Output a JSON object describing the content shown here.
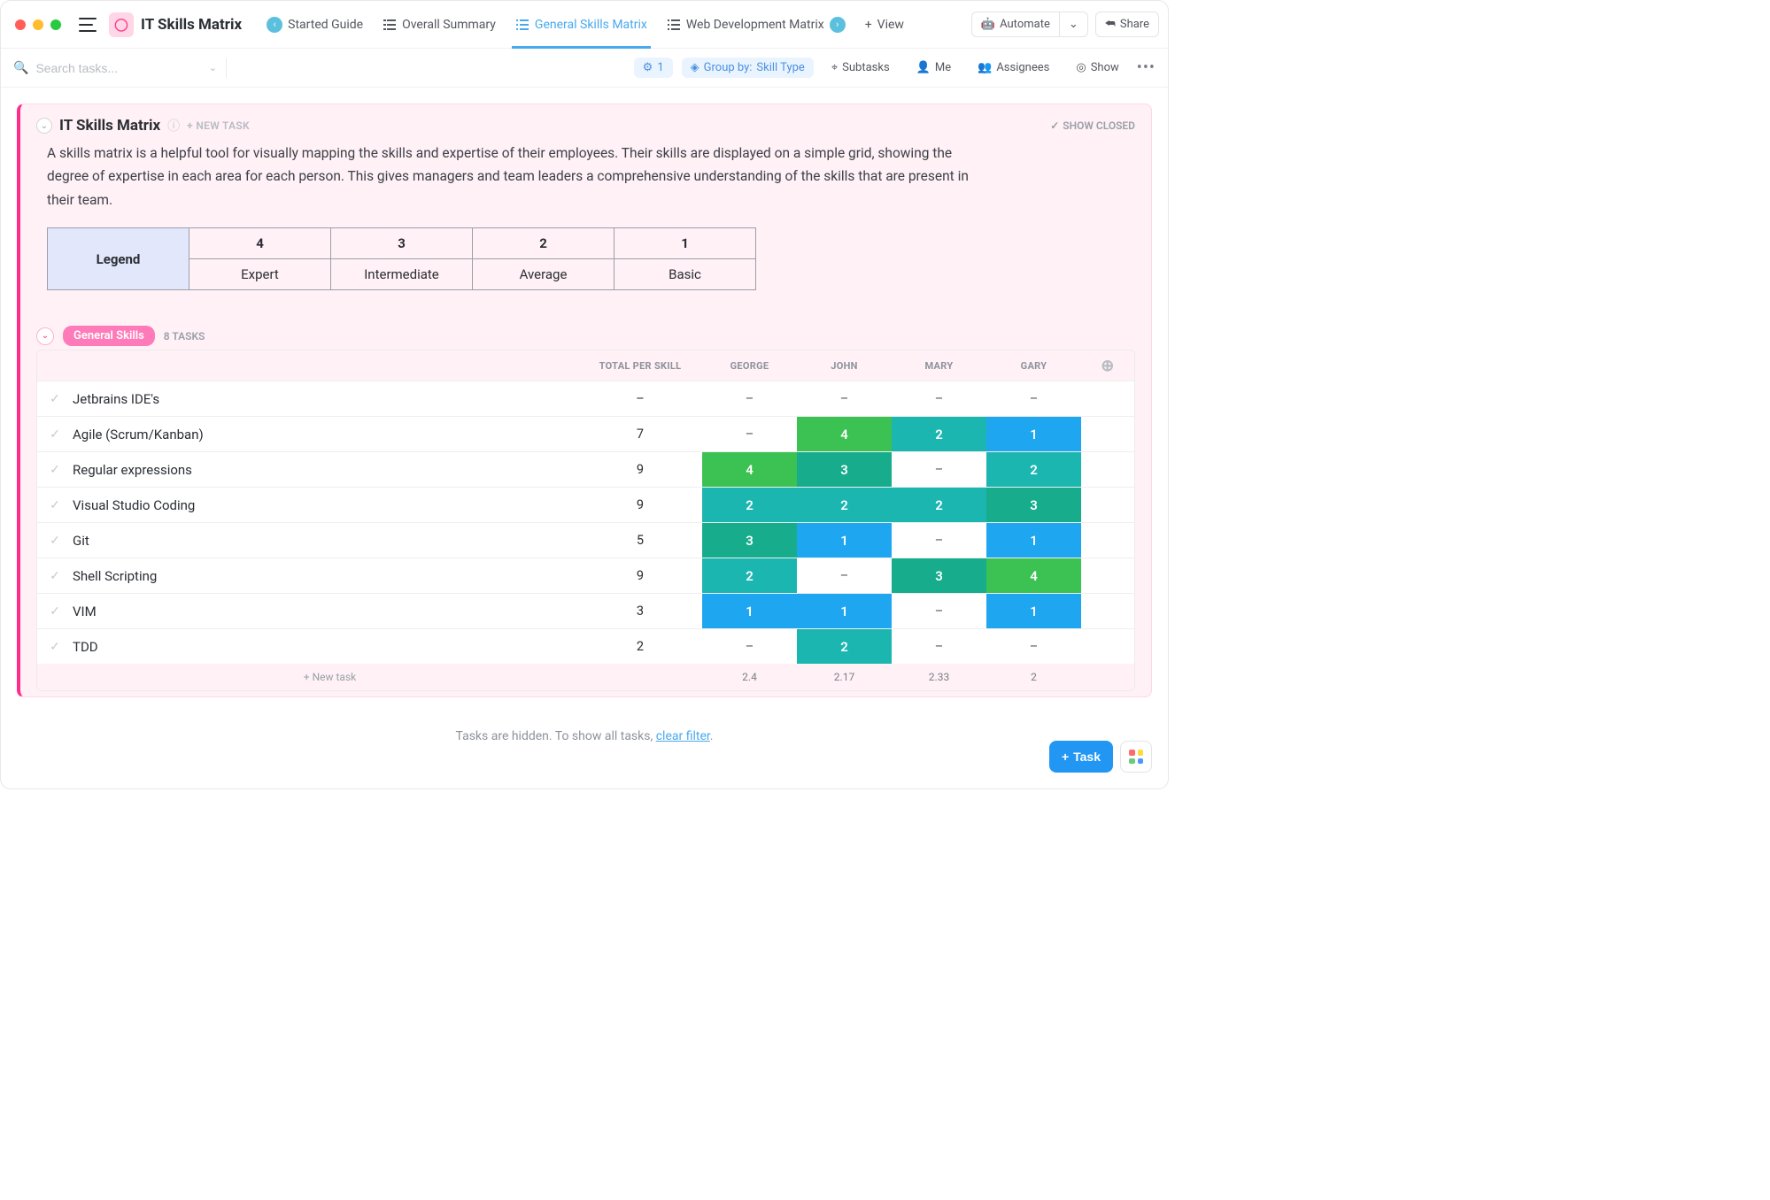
{
  "app": {
    "title": "IT Skills Matrix"
  },
  "tabs": [
    {
      "label": "Started Guide",
      "icon": "doc",
      "badge_left": true
    },
    {
      "label": "Overall Summary",
      "icon": "list"
    },
    {
      "label": "General Skills Matrix",
      "icon": "list",
      "active": true
    },
    {
      "label": "Web Development Matrix",
      "icon": "list",
      "badge_right": true
    }
  ],
  "topbar": {
    "view": "View",
    "automate": "Automate",
    "share": "Share"
  },
  "filterbar": {
    "search_placeholder": "Search tasks...",
    "filter_count": "1",
    "group_by_label": "Group by:",
    "group_by_value": "Skill Type",
    "subtasks": "Subtasks",
    "me": "Me",
    "assignees": "Assignees",
    "show": "Show"
  },
  "section": {
    "title": "IT Skills Matrix",
    "new_task": "+ NEW TASK",
    "show_closed": "SHOW CLOSED",
    "description": "A skills matrix is a helpful tool for visually mapping the skills and expertise of their employees. Their skills are displayed on a simple grid, showing the degree of expertise in each area for each person. This gives managers and team leaders a comprehensive understanding of the skills that are present in their team."
  },
  "legend": {
    "header": "Legend",
    "nums": [
      "4",
      "3",
      "2",
      "1"
    ],
    "labels": [
      "Expert",
      "Intermediate",
      "Average",
      "Basic"
    ]
  },
  "group": {
    "name": "General Skills",
    "count": "8 TASKS"
  },
  "matrix": {
    "columns": [
      "TOTAL PER SKILL",
      "GEORGE",
      "JOHN",
      "MARY",
      "GARY"
    ],
    "colors": {
      "1": "#1ea7f0",
      "2": "#1cb6b0",
      "3": "#17ad8c",
      "4": "#3cc153"
    },
    "rows": [
      {
        "name": "Jetbrains IDE's",
        "total": "–",
        "vals": [
          "–",
          "–",
          "–",
          "–"
        ]
      },
      {
        "name": "Agile (Scrum/Kanban)",
        "total": "7",
        "vals": [
          "–",
          "4",
          "2",
          "1"
        ]
      },
      {
        "name": "Regular expressions",
        "total": "9",
        "vals": [
          "4",
          "3",
          "–",
          "2"
        ]
      },
      {
        "name": "Visual Studio Coding",
        "total": "9",
        "vals": [
          "2",
          "2",
          "2",
          "3"
        ]
      },
      {
        "name": "Git",
        "total": "5",
        "vals": [
          "3",
          "1",
          "–",
          "1"
        ]
      },
      {
        "name": "Shell Scripting",
        "total": "9",
        "vals": [
          "2",
          "–",
          "3",
          "4"
        ]
      },
      {
        "name": "VIM",
        "total": "3",
        "vals": [
          "1",
          "1",
          "–",
          "1"
        ]
      },
      {
        "name": "TDD",
        "total": "2",
        "vals": [
          "–",
          "2",
          "–",
          "–"
        ]
      }
    ],
    "footer": {
      "new": "+ New task",
      "avgs": [
        "2.4",
        "2.17",
        "2.33",
        "2"
      ]
    }
  },
  "hidden_msg": {
    "pre": "Tasks are hidden. To show all tasks, ",
    "link": "clear filter",
    "post": "."
  },
  "bottom": {
    "task": "Task",
    "app_colors": [
      "#ff6b6b",
      "#ffd93d",
      "#6bcb77",
      "#4d96ff"
    ]
  }
}
